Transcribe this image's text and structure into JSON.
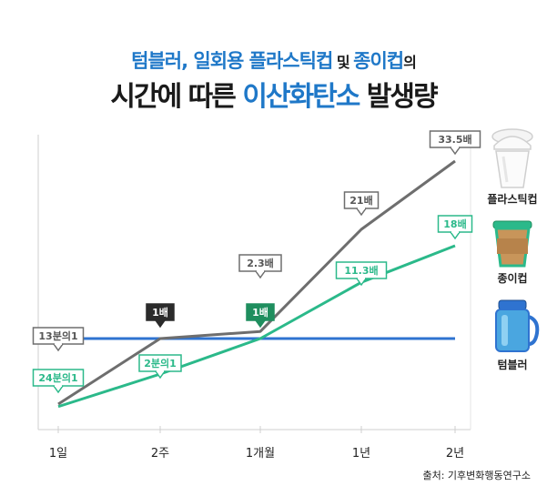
{
  "title": {
    "line1_a": "텀블러, 일회용 플라스틱컵",
    "line1_b": " 및 ",
    "line1_c": "종이컵",
    "line1_d": "의",
    "line2_a": "시간에 따른 ",
    "line2_b": "이산화탄소",
    "line2_c": " 발생량"
  },
  "source": "출처: 기후변화행동연구소",
  "colors": {
    "plastic": "#6e6e6e",
    "paper": "#2bb98a",
    "tumbler": "#2f73d0",
    "blue_title": "#1f78c8"
  },
  "chart_data": {
    "type": "line",
    "categories": [
      "1일",
      "2주",
      "1개월",
      "1년",
      "2년"
    ],
    "series": [
      {
        "name": "플라스틱컵",
        "values_ratio": [
          0.0769,
          1,
          2.3,
          21,
          33.5
        ],
        "labels": [
          "13분의1",
          "1배",
          "2.3배",
          "21배",
          "33.5배"
        ],
        "icon": "plastic-cup-icon"
      },
      {
        "name": "종이컵",
        "values_ratio": [
          0.0417,
          0.5,
          1,
          11.3,
          18
        ],
        "labels": [
          "24분의1",
          "2분의1",
          "1배",
          "11.3배",
          "18배"
        ],
        "icon": "paper-cup-icon"
      },
      {
        "name": "텀블러",
        "values_ratio": [
          1,
          1,
          1,
          1,
          1
        ],
        "labels": [],
        "icon": "tumbler-icon"
      }
    ],
    "legend_placement": "right",
    "grid": false
  }
}
